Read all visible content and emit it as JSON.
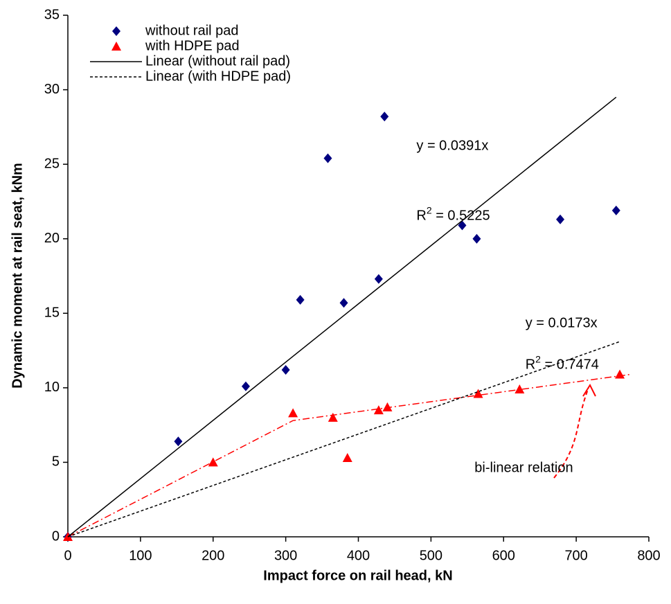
{
  "chart_data": {
    "type": "scatter",
    "x_label": "Impact force on rail head, kN",
    "y_label": "Dynamic moment at rail seat, kNm",
    "xlim": [
      0,
      800
    ],
    "xticks": [
      0,
      100,
      200,
      300,
      400,
      500,
      600,
      700,
      800
    ],
    "ylim": [
      0,
      35
    ],
    "yticks": [
      0,
      5,
      10,
      15,
      20,
      25,
      30,
      35
    ],
    "grid": false,
    "legend": "top-left",
    "series": [
      {
        "name": "without rail pad",
        "color": "#000080",
        "marker": "diamond",
        "x": [
          0,
          152,
          245,
          300,
          320,
          358,
          380,
          428,
          436,
          543,
          563,
          678,
          755
        ],
        "values": [
          0,
          6.4,
          10.1,
          11.2,
          15.9,
          25.4,
          15.7,
          17.3,
          28.2,
          20.9,
          20.0,
          21.3,
          21.9
        ]
      },
      {
        "name": "with HDPE pad",
        "color": "#ff0000",
        "marker": "triangle",
        "x": [
          0,
          200,
          310,
          365,
          385,
          428,
          440,
          565,
          622,
          760
        ],
        "values": [
          0,
          5.0,
          8.3,
          8.0,
          5.3,
          8.5,
          8.7,
          9.6,
          9.9,
          10.9
        ]
      },
      {
        "name": "Linear (without rail pad)",
        "color": "#000000",
        "line": "solid",
        "x": [
          0,
          755
        ],
        "values": [
          0,
          29.5
        ]
      },
      {
        "name": "Linear (with HDPE pad)",
        "color": "#000000",
        "line": "dotted",
        "x": [
          0,
          760
        ],
        "values": [
          0,
          13.1
        ]
      }
    ],
    "bilinear": {
      "color": "#ff0000",
      "x": [
        0,
        310,
        775
      ],
      "values": [
        0,
        7.8,
        10.9
      ]
    },
    "annotations": [
      {
        "text": "y = 0.0391x",
        "x": 480,
        "y": 26.2
      },
      {
        "base": "R",
        "sup": "2",
        "rest": " = 0.5225",
        "x": 480,
        "y": 21.5
      },
      {
        "text": "y = 0.0173x",
        "x": 630,
        "y": 14.3
      },
      {
        "base": "R",
        "sup": "2",
        "rest": " = 0.7474",
        "x": 630,
        "y": 11.5
      },
      {
        "text": "bi-linear relation",
        "x": 560,
        "y": 4.6
      }
    ]
  }
}
